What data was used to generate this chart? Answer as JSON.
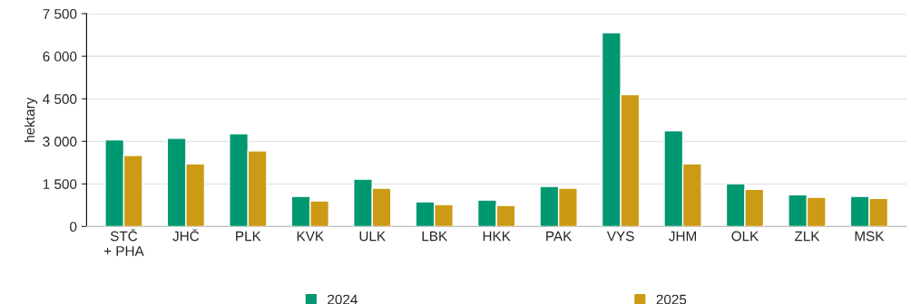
{
  "chart_data": {
    "type": "bar",
    "ylabel": "hektary",
    "categories": [
      "STČ\n+ PHA",
      "JHČ",
      "PLK",
      "KVK",
      "ULK",
      "LBK",
      "HKK",
      "PAK",
      "VYS",
      "JHM",
      "OLK",
      "ZLK",
      "MSK"
    ],
    "series": [
      {
        "name": "2024",
        "color": "#009870",
        "values": [
          3050,
          3110,
          3270,
          1060,
          1670,
          870,
          930,
          1410,
          6830,
          3370,
          1510,
          1120,
          1060
        ]
      },
      {
        "name": "2025",
        "color": "#cc9a14",
        "values": [
          2500,
          2210,
          2660,
          900,
          1350,
          770,
          740,
          1350,
          4650,
          2210,
          1310,
          1030,
          990
        ]
      }
    ],
    "ylim": [
      0,
      7500
    ],
    "yticks": [
      0,
      {
        "value": 1500,
        "label": "1 500"
      },
      {
        "value": 3000,
        "label": "3 000"
      },
      {
        "value": 4500,
        "label": "4 500"
      },
      {
        "value": 6000,
        "label": "6 000"
      },
      {
        "value": 7500,
        "label": "7 500"
      }
    ],
    "grid": "y",
    "legend": "bottom"
  }
}
